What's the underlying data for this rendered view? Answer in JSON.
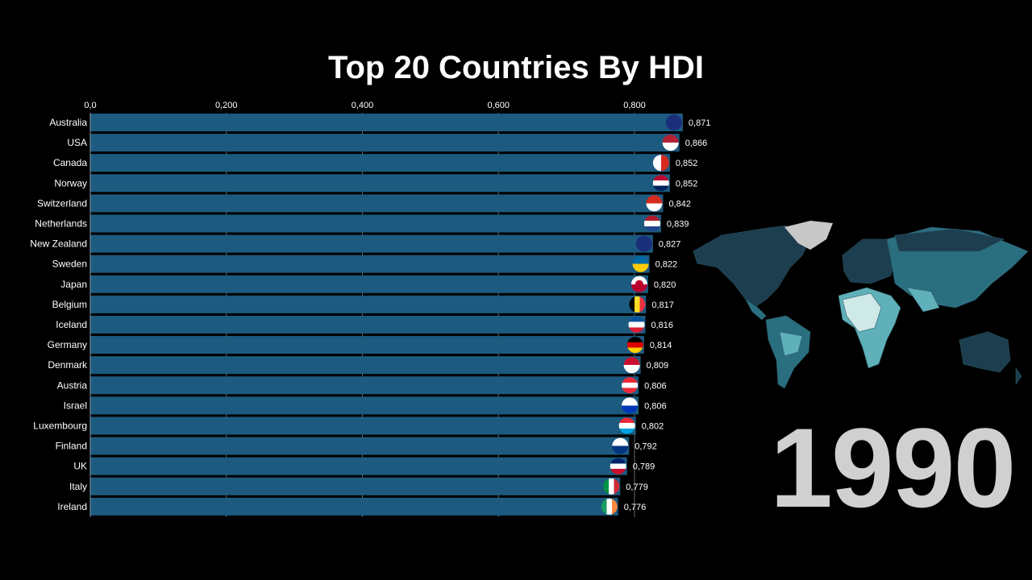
{
  "chart_data": {
    "type": "bar",
    "orientation": "horizontal",
    "title": "Top 20 Countries By HDI",
    "xlim": [
      0,
      0.9
    ],
    "x_ticks": [
      "0,0",
      "0,200",
      "0,400",
      "0,600",
      "0,800"
    ],
    "x_tick_values": [
      0,
      0.2,
      0.4,
      0.6,
      0.8
    ],
    "grid": true,
    "bar_color": "#1d5a80",
    "categories": [
      "Australia",
      "USA",
      "Canada",
      "Norway",
      "Switzerland",
      "Netherlands",
      "New Zealand",
      "Sweden",
      "Japan",
      "Belgium",
      "Iceland",
      "Germany",
      "Denmark",
      "Austria",
      "Israel",
      "Luxembourg",
      "Finland",
      "UK",
      "Italy",
      "Ireland"
    ],
    "values": [
      0.871,
      0.866,
      0.852,
      0.852,
      0.842,
      0.839,
      0.827,
      0.822,
      0.82,
      0.817,
      0.816,
      0.814,
      0.809,
      0.806,
      0.806,
      0.802,
      0.792,
      0.789,
      0.779,
      0.776
    ],
    "value_labels": [
      "0,871",
      "0,866",
      "0,852",
      "0,852",
      "0,842",
      "0,839",
      "0,827",
      "0,822",
      "0,820",
      "0,817",
      "0,816",
      "0,814",
      "0,809",
      "0,806",
      "0,806",
      "0,802",
      "0,792",
      "0,789",
      "0,779",
      "0,776"
    ],
    "flags": [
      "australia-flag",
      "usa-flag",
      "canada-flag",
      "norway-flag",
      "switzerland-flag",
      "netherlands-flag",
      "new-zealand-flag",
      "sweden-flag",
      "japan-flag",
      "belgium-flag",
      "iceland-flag",
      "germany-flag",
      "denmark-flag",
      "austria-flag",
      "israel-flag",
      "luxembourg-flag",
      "finland-flag",
      "uk-flag",
      "italy-flag",
      "ireland-flag"
    ]
  },
  "year": "1990",
  "map": {
    "label": "world-hdi-map",
    "colors": [
      "#1c3e4e",
      "#2a6f80",
      "#5fb0b8",
      "#cfe8e8",
      "#c8c8c8"
    ]
  }
}
